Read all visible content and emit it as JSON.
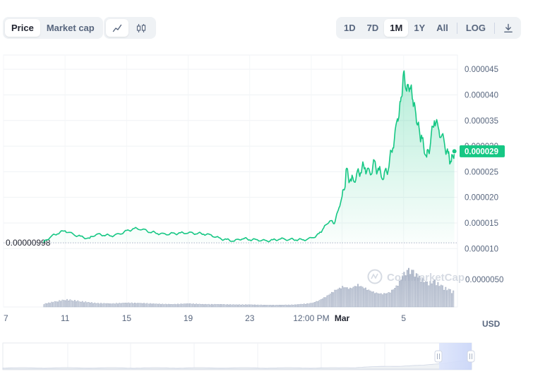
{
  "toolbar": {
    "metric_tabs": [
      {
        "label": "Price",
        "active": true
      },
      {
        "label": "Market cap",
        "active": false
      }
    ],
    "chart_type_icons": [
      "line-chart-icon",
      "candlestick-icon"
    ],
    "ranges": [
      {
        "label": "1D",
        "active": false
      },
      {
        "label": "7D",
        "active": false
      },
      {
        "label": "1M",
        "active": true
      },
      {
        "label": "1Y",
        "active": false
      },
      {
        "label": "All",
        "active": false
      }
    ],
    "log_label": "LOG",
    "download_icon": "download-icon"
  },
  "chart": {
    "currency": "USD",
    "current_price_label": "0.000029",
    "start_price_label": "0.00000998",
    "volume_axis_label": "0.0000050",
    "watermark": "CoinMarketCap",
    "accent_color": "#16c784"
  },
  "chart_data": {
    "type": "area",
    "y_tick_labels": [
      "0.000045",
      "0.000040",
      "0.000035",
      "0.000030",
      "0.000025",
      "0.000020",
      "0.000015",
      "0.000010"
    ],
    "y_ticks": [
      4.5e-05,
      4e-05,
      3.5e-05,
      3e-05,
      2.5e-05,
      2e-05,
      1.5e-05,
      1e-05
    ],
    "x_tick_labels": [
      "7",
      "11",
      "15",
      "19",
      "23",
      "12:00 PM",
      "Mar",
      "5"
    ],
    "x_tick_days": [
      0,
      4,
      8,
      12,
      16,
      20,
      22,
      26
    ],
    "x_range_days": [
      0,
      29.5
    ],
    "y_range": [
      8.8e-06,
      4.75e-05
    ],
    "price_series": [
      [
        2.6,
        1.12e-05
      ],
      [
        3.0,
        1.22e-05
      ],
      [
        3.5,
        1.3e-05
      ],
      [
        4.0,
        1.35e-05
      ],
      [
        4.5,
        1.28e-05
      ],
      [
        5.0,
        1.23e-05
      ],
      [
        5.6,
        1.2e-05
      ],
      [
        6.0,
        1.28e-05
      ],
      [
        6.5,
        1.27e-05
      ],
      [
        7.0,
        1.25e-05
      ],
      [
        7.5,
        1.28e-05
      ],
      [
        8.0,
        1.34e-05
      ],
      [
        8.5,
        1.39e-05
      ],
      [
        9.0,
        1.38e-05
      ],
      [
        9.5,
        1.33e-05
      ],
      [
        10.0,
        1.3e-05
      ],
      [
        10.5,
        1.28e-05
      ],
      [
        11.0,
        1.29e-05
      ],
      [
        11.5,
        1.3e-05
      ],
      [
        12.0,
        1.31e-05
      ],
      [
        12.5,
        1.3e-05
      ],
      [
        13.0,
        1.29e-05
      ],
      [
        13.5,
        1.26e-05
      ],
      [
        14.0,
        1.2e-05
      ],
      [
        14.5,
        1.17e-05
      ],
      [
        15.0,
        1.15e-05
      ],
      [
        15.5,
        1.2e-05
      ],
      [
        16.0,
        1.18e-05
      ],
      [
        16.5,
        1.17e-05
      ],
      [
        17.0,
        1.15e-05
      ],
      [
        17.5,
        1.16e-05
      ],
      [
        18.0,
        1.19e-05
      ],
      [
        18.5,
        1.18e-05
      ],
      [
        19.0,
        1.18e-05
      ],
      [
        19.5,
        1.17e-05
      ],
      [
        20.0,
        1.2e-05
      ],
      [
        20.5,
        1.28e-05
      ],
      [
        20.8,
        1.4e-05
      ],
      [
        21.2,
        1.55e-05
      ],
      [
        21.5,
        1.5e-05
      ],
      [
        21.8,
        1.8e-05
      ],
      [
        22.1,
        2.1e-05
      ],
      [
        22.3,
        2.5e-05
      ],
      [
        22.6,
        2.3e-05
      ],
      [
        22.9,
        2.4e-05
      ],
      [
        23.2,
        2.55e-05
      ],
      [
        23.5,
        2.6e-05
      ],
      [
        23.8,
        2.45e-05
      ],
      [
        24.1,
        2.65e-05
      ],
      [
        24.4,
        2.5e-05
      ],
      [
        24.7,
        2.4e-05
      ],
      [
        25.0,
        2.6e-05
      ],
      [
        25.3,
        3e-05
      ],
      [
        25.6,
        3.5e-05
      ],
      [
        25.8,
        3.8e-05
      ],
      [
        26.0,
        4.4e-05
      ],
      [
        26.2,
        4.1e-05
      ],
      [
        26.4,
        4.2e-05
      ],
      [
        26.6,
        3.95e-05
      ],
      [
        26.8,
        3.6e-05
      ],
      [
        27.0,
        3.3e-05
      ],
      [
        27.2,
        3.1e-05
      ],
      [
        27.5,
        2.8e-05
      ],
      [
        27.7,
        3e-05
      ],
      [
        28.0,
        3.55e-05
      ],
      [
        28.3,
        3.3e-05
      ],
      [
        28.6,
        3.1e-05
      ],
      [
        28.9,
        2.8e-05
      ],
      [
        29.1,
        2.7e-05
      ],
      [
        29.3,
        2.9e-05
      ]
    ],
    "volume_series": [
      [
        2.6,
        0.08
      ],
      [
        3.0,
        0.12
      ],
      [
        3.5,
        0.16
      ],
      [
        4.0,
        0.2
      ],
      [
        4.5,
        0.18
      ],
      [
        5.0,
        0.15
      ],
      [
        5.6,
        0.12
      ],
      [
        6.0,
        0.1
      ],
      [
        7.0,
        0.09
      ],
      [
        8.0,
        0.11
      ],
      [
        9.0,
        0.1
      ],
      [
        10.0,
        0.08
      ],
      [
        11.0,
        0.07
      ],
      [
        12.0,
        0.09
      ],
      [
        13.0,
        0.07
      ],
      [
        14.0,
        0.07
      ],
      [
        15.0,
        0.06
      ],
      [
        16.0,
        0.06
      ],
      [
        17.0,
        0.05
      ],
      [
        18.0,
        0.05
      ],
      [
        19.0,
        0.06
      ],
      [
        20.0,
        0.1
      ],
      [
        20.5,
        0.18
      ],
      [
        21.0,
        0.3
      ],
      [
        21.5,
        0.45
      ],
      [
        22.0,
        0.55
      ],
      [
        22.5,
        0.5
      ],
      [
        23.0,
        0.6
      ],
      [
        23.5,
        0.5
      ],
      [
        24.0,
        0.4
      ],
      [
        24.5,
        0.35
      ],
      [
        25.0,
        0.38
      ],
      [
        25.5,
        0.55
      ],
      [
        26.0,
        0.9
      ],
      [
        26.3,
        1.0
      ],
      [
        26.6,
        0.95
      ],
      [
        27.0,
        0.8
      ],
      [
        27.5,
        0.65
      ],
      [
        28.0,
        0.7
      ],
      [
        28.5,
        0.55
      ],
      [
        29.0,
        0.45
      ],
      [
        29.3,
        0.4
      ]
    ]
  }
}
